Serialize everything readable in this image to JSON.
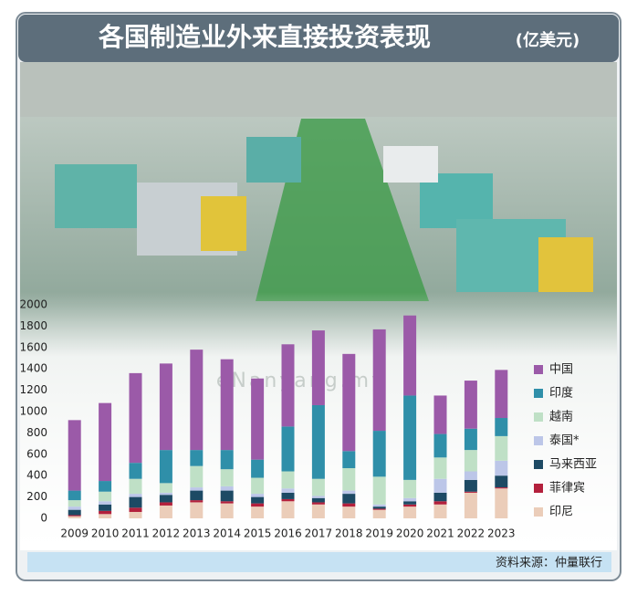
{
  "chart_data": {
    "type": "stacked_bar",
    "title": "各国制造业外来直接投资表现",
    "unit": "(亿美元)",
    "source": "资料来源：仲量联行",
    "watermark": "eNanyang.my",
    "categories": [
      "2009",
      "2010",
      "2011",
      "2012",
      "2013",
      "2014",
      "2015",
      "2016",
      "2017",
      "2018",
      "2019",
      "2020",
      "2021",
      "2022",
      "2023"
    ],
    "series": [
      {
        "name": "中国",
        "color": "#9b5aa8",
        "values": [
          660,
          730,
          840,
          810,
          940,
          850,
          760,
          770,
          700,
          910,
          950,
          750,
          360,
          450,
          450
        ]
      },
      {
        "name": "印度",
        "color": "#2f8fa9",
        "values": [
          90,
          100,
          150,
          310,
          150,
          180,
          170,
          420,
          690,
          160,
          430,
          790,
          220,
          200,
          170
        ]
      },
      {
        "name": "越南",
        "color": "#bfe0c6",
        "values": [
          60,
          90,
          140,
          90,
          200,
          160,
          150,
          160,
          160,
          210,
          260,
          170,
          200,
          200,
          230
        ]
      },
      {
        "name": "泰国*",
        "color": "#bcc6e8",
        "values": [
          30,
          30,
          30,
          20,
          30,
          40,
          30,
          40,
          20,
          30,
          20,
          30,
          130,
          80,
          140
        ]
      },
      {
        "name": "马来西亚",
        "color": "#1d4a64",
        "values": [
          50,
          60,
          100,
          70,
          90,
          100,
          60,
          60,
          40,
          90,
          20,
          30,
          80,
          110,
          110
        ]
      },
      {
        "name": "菲律宾",
        "color": "#b3203c",
        "values": [
          10,
          30,
          40,
          30,
          20,
          20,
          30,
          20,
          20,
          30,
          10,
          20,
          30,
          10,
          10
        ]
      },
      {
        "name": "印尼",
        "color": "#ebcdb9",
        "values": [
          20,
          40,
          60,
          120,
          150,
          140,
          110,
          160,
          130,
          110,
          80,
          110,
          130,
          240,
          280
        ]
      }
    ],
    "ylim": [
      0,
      2000
    ],
    "yticks": [
      0,
      200,
      400,
      600,
      800,
      1000,
      1200,
      1400,
      1600,
      1800,
      2000
    ],
    "grid": false
  }
}
